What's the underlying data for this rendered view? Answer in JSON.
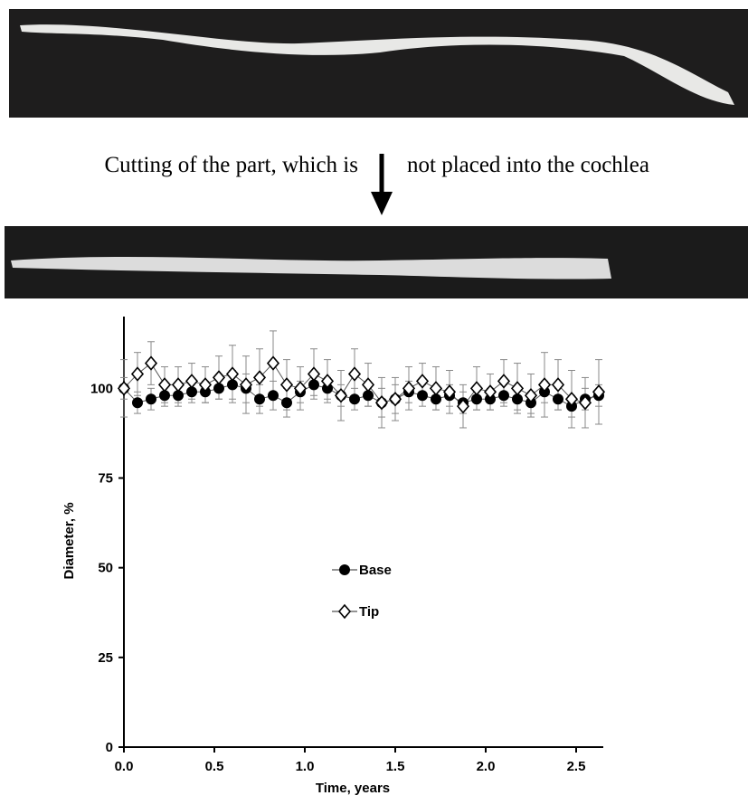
{
  "figure_text": {
    "left": "Cutting of the part, which is",
    "right": "not placed into the cochlea"
  },
  "chart_data": {
    "type": "scatter",
    "x_label": "Time, years",
    "y_label": "Diameter, %",
    "xlim": [
      0,
      2.65
    ],
    "ylim": [
      0,
      120
    ],
    "xticks": [
      {
        "value": 0,
        "label": "0.0"
      },
      0.5,
      {
        "value": 1,
        "label": "1.0"
      },
      1.5,
      {
        "value": 2,
        "label": "2.0"
      },
      2.5
    ],
    "yticks": [
      0,
      25,
      50,
      75,
      100
    ],
    "legend": "center",
    "x": [
      0,
      0.075,
      0.15,
      0.225,
      0.3,
      0.375,
      0.45,
      0.525,
      0.6,
      0.675,
      0.75,
      0.825,
      0.9,
      0.975,
      1.05,
      1.125,
      1.2,
      1.275,
      1.35,
      1.425,
      1.5,
      1.575,
      1.65,
      1.725,
      1.8,
      1.875,
      1.95,
      2.025,
      2.1,
      2.175,
      2.25,
      2.325,
      2.4,
      2.475,
      2.55,
      2.625
    ],
    "series": [
      {
        "name": "Base",
        "color": "#000000",
        "marker": "circle",
        "values": [
          100,
          96,
          97,
          98,
          98,
          99,
          99,
          100,
          101,
          100,
          97,
          98,
          96,
          99,
          101,
          100,
          98,
          97,
          98,
          96,
          97,
          99,
          98,
          97,
          98,
          96,
          97,
          97,
          98,
          97,
          96,
          99,
          97,
          95,
          97,
          98
        ],
        "errors": [
          3,
          3,
          3,
          3,
          3,
          3,
          3,
          3,
          4,
          4,
          4,
          4,
          4,
          3,
          3,
          3,
          3,
          3,
          3,
          4,
          4,
          3,
          3,
          3,
          3,
          3,
          3,
          3,
          3,
          3,
          3,
          3,
          3,
          3,
          3,
          3
        ]
      },
      {
        "name": "Tip",
        "color": "#ffffff",
        "marker": "diamond",
        "values": [
          100,
          104,
          107,
          101,
          101,
          102,
          101,
          103,
          104,
          101,
          103,
          107,
          101,
          100,
          104,
          102,
          98,
          104,
          101,
          96,
          97,
          100,
          102,
          100,
          99,
          95,
          100,
          99,
          102,
          100,
          98,
          101,
          101,
          97,
          96,
          99
        ],
        "errors": [
          8,
          6,
          6,
          5,
          5,
          5,
          5,
          6,
          8,
          8,
          8,
          9,
          7,
          6,
          7,
          6,
          7,
          7,
          6,
          7,
          6,
          6,
          5,
          6,
          6,
          6,
          6,
          5,
          6,
          7,
          6,
          9,
          7,
          8,
          7,
          9
        ]
      }
    ]
  }
}
